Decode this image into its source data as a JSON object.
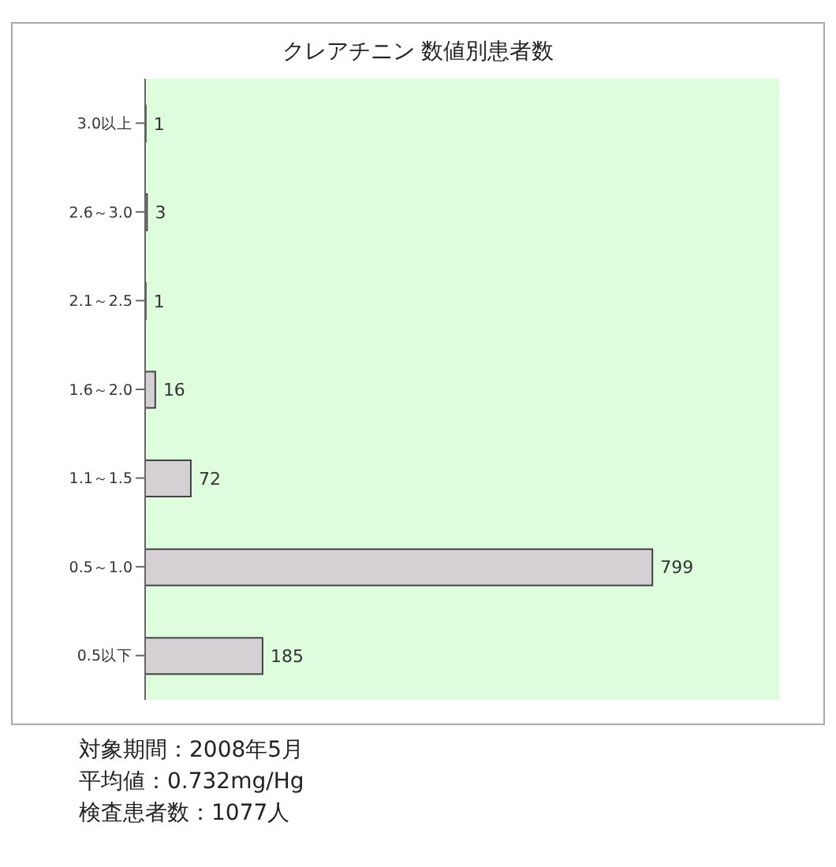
{
  "chart_data": {
    "type": "bar",
    "orientation": "horizontal",
    "title": "クレアチニン 数値別患者数",
    "categories": [
      "3.0以上",
      "2.6～3.0",
      "2.1～2.5",
      "1.6～2.0",
      "1.1～1.5",
      "0.5～1.0",
      "0.5以下"
    ],
    "values": [
      1,
      3,
      1,
      16,
      72,
      799,
      185
    ],
    "color": "#d4d0d4",
    "data_labels": true,
    "grid": false,
    "annotations": [
      "対象期間：2008年5月",
      "平均値：0.732mg/Hg",
      "検査患者数：1077人"
    ]
  }
}
